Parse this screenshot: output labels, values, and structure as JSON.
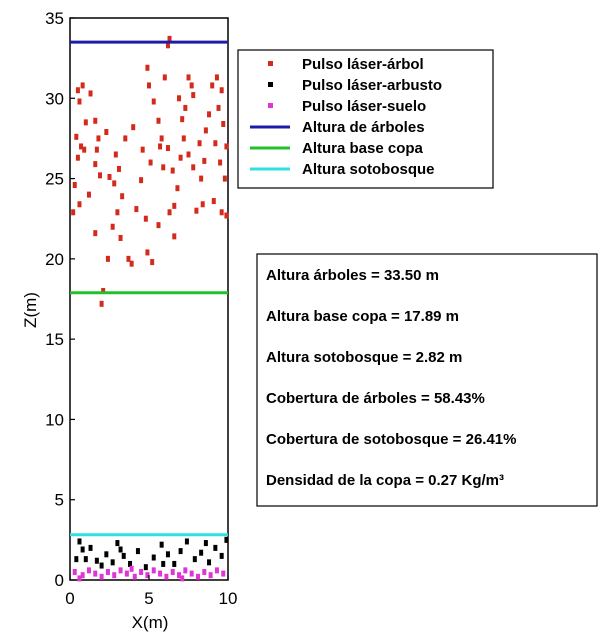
{
  "chart_data": {
    "type": "scatter",
    "xlabel": "X(m)",
    "ylabel": "Z(m)",
    "xlim": [
      0,
      10
    ],
    "ylim": [
      0,
      35
    ],
    "xticks": [
      "0",
      "5",
      "10"
    ],
    "yticks": [
      "0",
      "5",
      "10",
      "15",
      "20",
      "25",
      "30",
      "35"
    ],
    "legend_position": "top-right",
    "series": [
      {
        "name": "Pulso láser-árbol",
        "kind": "points",
        "color": "#d42a1c",
        "points": [
          [
            6.3,
            33.7
          ],
          [
            6.2,
            33.3
          ],
          [
            0.5,
            30.5
          ],
          [
            0.8,
            30.8
          ],
          [
            0.6,
            29.8
          ],
          [
            1.0,
            28.5
          ],
          [
            0.4,
            27.6
          ],
          [
            0.7,
            27.0
          ],
          [
            0.5,
            26.3
          ],
          [
            0.9,
            26.8
          ],
          [
            1.6,
            28.6
          ],
          [
            1.8,
            27.5
          ],
          [
            1.7,
            26.8
          ],
          [
            1.6,
            25.9
          ],
          [
            1.9,
            25.2
          ],
          [
            2.9,
            26.5
          ],
          [
            3.1,
            25.6
          ],
          [
            2.8,
            24.7
          ],
          [
            3.3,
            23.9
          ],
          [
            3.0,
            22.9
          ],
          [
            2.7,
            22.0
          ],
          [
            3.2,
            21.3
          ],
          [
            2.4,
            20.0
          ],
          [
            1.6,
            21.6
          ],
          [
            0.3,
            24.6
          ],
          [
            0.6,
            23.4
          ],
          [
            0.2,
            22.9
          ],
          [
            2.1,
            18.0
          ],
          [
            2.0,
            17.2
          ],
          [
            3.7,
            20.0
          ],
          [
            3.9,
            19.7
          ],
          [
            4.2,
            23.1
          ],
          [
            4.5,
            24.9
          ],
          [
            4.8,
            22.5
          ],
          [
            4.9,
            20.4
          ],
          [
            5.2,
            19.8
          ],
          [
            5.6,
            22.1
          ],
          [
            5.1,
            26.0
          ],
          [
            5.7,
            27.0
          ],
          [
            5.9,
            25.7
          ],
          [
            5.0,
            30.8
          ],
          [
            5.3,
            29.8
          ],
          [
            5.6,
            28.6
          ],
          [
            5.8,
            27.5
          ],
          [
            4.9,
            31.9
          ],
          [
            6.2,
            26.9
          ],
          [
            6.5,
            25.5
          ],
          [
            6.8,
            24.4
          ],
          [
            6.6,
            23.3
          ],
          [
            6.3,
            22.9
          ],
          [
            6.6,
            21.4
          ],
          [
            7.0,
            26.3
          ],
          [
            7.2,
            27.5
          ],
          [
            7.1,
            28.7
          ],
          [
            7.5,
            26.5
          ],
          [
            7.8,
            25.7
          ],
          [
            7.3,
            29.4
          ],
          [
            7.7,
            30.8
          ],
          [
            7.5,
            31.3
          ],
          [
            7.8,
            30.2
          ],
          [
            8.2,
            27.2
          ],
          [
            8.5,
            26.1
          ],
          [
            8.3,
            25.0
          ],
          [
            8.6,
            28.0
          ],
          [
            8.8,
            29.0
          ],
          [
            8.4,
            23.4
          ],
          [
            8.0,
            23.0
          ],
          [
            9.0,
            30.8
          ],
          [
            9.3,
            31.3
          ],
          [
            9.6,
            30.5
          ],
          [
            9.4,
            29.4
          ],
          [
            9.7,
            28.4
          ],
          [
            9.2,
            27.2
          ],
          [
            9.5,
            26.0
          ],
          [
            9.8,
            25.0
          ],
          [
            9.9,
            27.0
          ],
          [
            9.6,
            22.9
          ],
          [
            9.1,
            23.6
          ],
          [
            3.5,
            27.5
          ],
          [
            4.0,
            28.2
          ],
          [
            2.3,
            27.9
          ],
          [
            2.5,
            25.1
          ],
          [
            1.3,
            30.3
          ],
          [
            1.2,
            24.0
          ],
          [
            6.0,
            31.3
          ],
          [
            6.9,
            30.0
          ],
          [
            4.6,
            26.8
          ],
          [
            9.9,
            22.7
          ]
        ]
      },
      {
        "name": "Pulso láser-arbusto",
        "kind": "points",
        "color": "#000000",
        "points": [
          [
            0.6,
            2.4
          ],
          [
            0.8,
            1.9
          ],
          [
            1.0,
            1.3
          ],
          [
            1.3,
            2.0
          ],
          [
            1.7,
            1.2
          ],
          [
            2.0,
            0.9
          ],
          [
            2.3,
            1.6
          ],
          [
            2.7,
            1.1
          ],
          [
            3.0,
            2.3
          ],
          [
            3.4,
            1.5
          ],
          [
            3.8,
            1.0
          ],
          [
            4.3,
            1.8
          ],
          [
            4.8,
            0.8
          ],
          [
            5.3,
            1.4
          ],
          [
            5.8,
            2.2
          ],
          [
            6.2,
            1.6
          ],
          [
            6.6,
            1.0
          ],
          [
            7.0,
            1.8
          ],
          [
            7.4,
            2.4
          ],
          [
            7.9,
            1.3
          ],
          [
            8.3,
            1.7
          ],
          [
            8.8,
            1.1
          ],
          [
            9.2,
            2.0
          ],
          [
            9.6,
            1.5
          ],
          [
            9.9,
            2.5
          ],
          [
            0.4,
            1.3
          ],
          [
            3.2,
            1.9
          ],
          [
            5.9,
            1.0
          ],
          [
            8.6,
            2.3
          ]
        ]
      },
      {
        "name": "Pulso láser-suelo",
        "kind": "points",
        "color": "#e034d6",
        "points": [
          [
            0.3,
            0.5
          ],
          [
            0.8,
            0.3
          ],
          [
            1.2,
            0.6
          ],
          [
            1.6,
            0.4
          ],
          [
            2.0,
            0.2
          ],
          [
            2.4,
            0.5
          ],
          [
            2.8,
            0.3
          ],
          [
            3.2,
            0.6
          ],
          [
            3.6,
            0.4
          ],
          [
            4.1,
            0.2
          ],
          [
            4.5,
            0.5
          ],
          [
            4.9,
            0.3
          ],
          [
            5.3,
            0.6
          ],
          [
            5.7,
            0.4
          ],
          [
            6.1,
            0.2
          ],
          [
            6.5,
            0.5
          ],
          [
            6.9,
            0.3
          ],
          [
            7.3,
            0.6
          ],
          [
            7.7,
            0.4
          ],
          [
            8.1,
            0.2
          ],
          [
            8.5,
            0.5
          ],
          [
            8.9,
            0.3
          ],
          [
            9.3,
            0.6
          ],
          [
            9.7,
            0.4
          ],
          [
            0.6,
            0.1
          ],
          [
            3.9,
            0.7
          ],
          [
            7.1,
            0.1
          ]
        ]
      },
      {
        "name": "Altura de árboles",
        "kind": "hline",
        "color": "#1c1ca8",
        "y": 33.5
      },
      {
        "name": "Altura base copa",
        "kind": "hline",
        "color": "#22c02a",
        "y": 17.89
      },
      {
        "name": "Altura sotobosque",
        "kind": "hline",
        "color": "#2ee0e0",
        "y": 2.82
      }
    ],
    "annotations": [
      "Altura árboles = 33.50 m",
      "Altura base copa = 17.89 m",
      "Altura sotobosque = 2.82 m",
      "Cobertura de árboles = 58.43%",
      "Cobertura de sotobosque = 26.41%",
      "Densidad de la copa = 0.27 Kg/m³"
    ]
  }
}
